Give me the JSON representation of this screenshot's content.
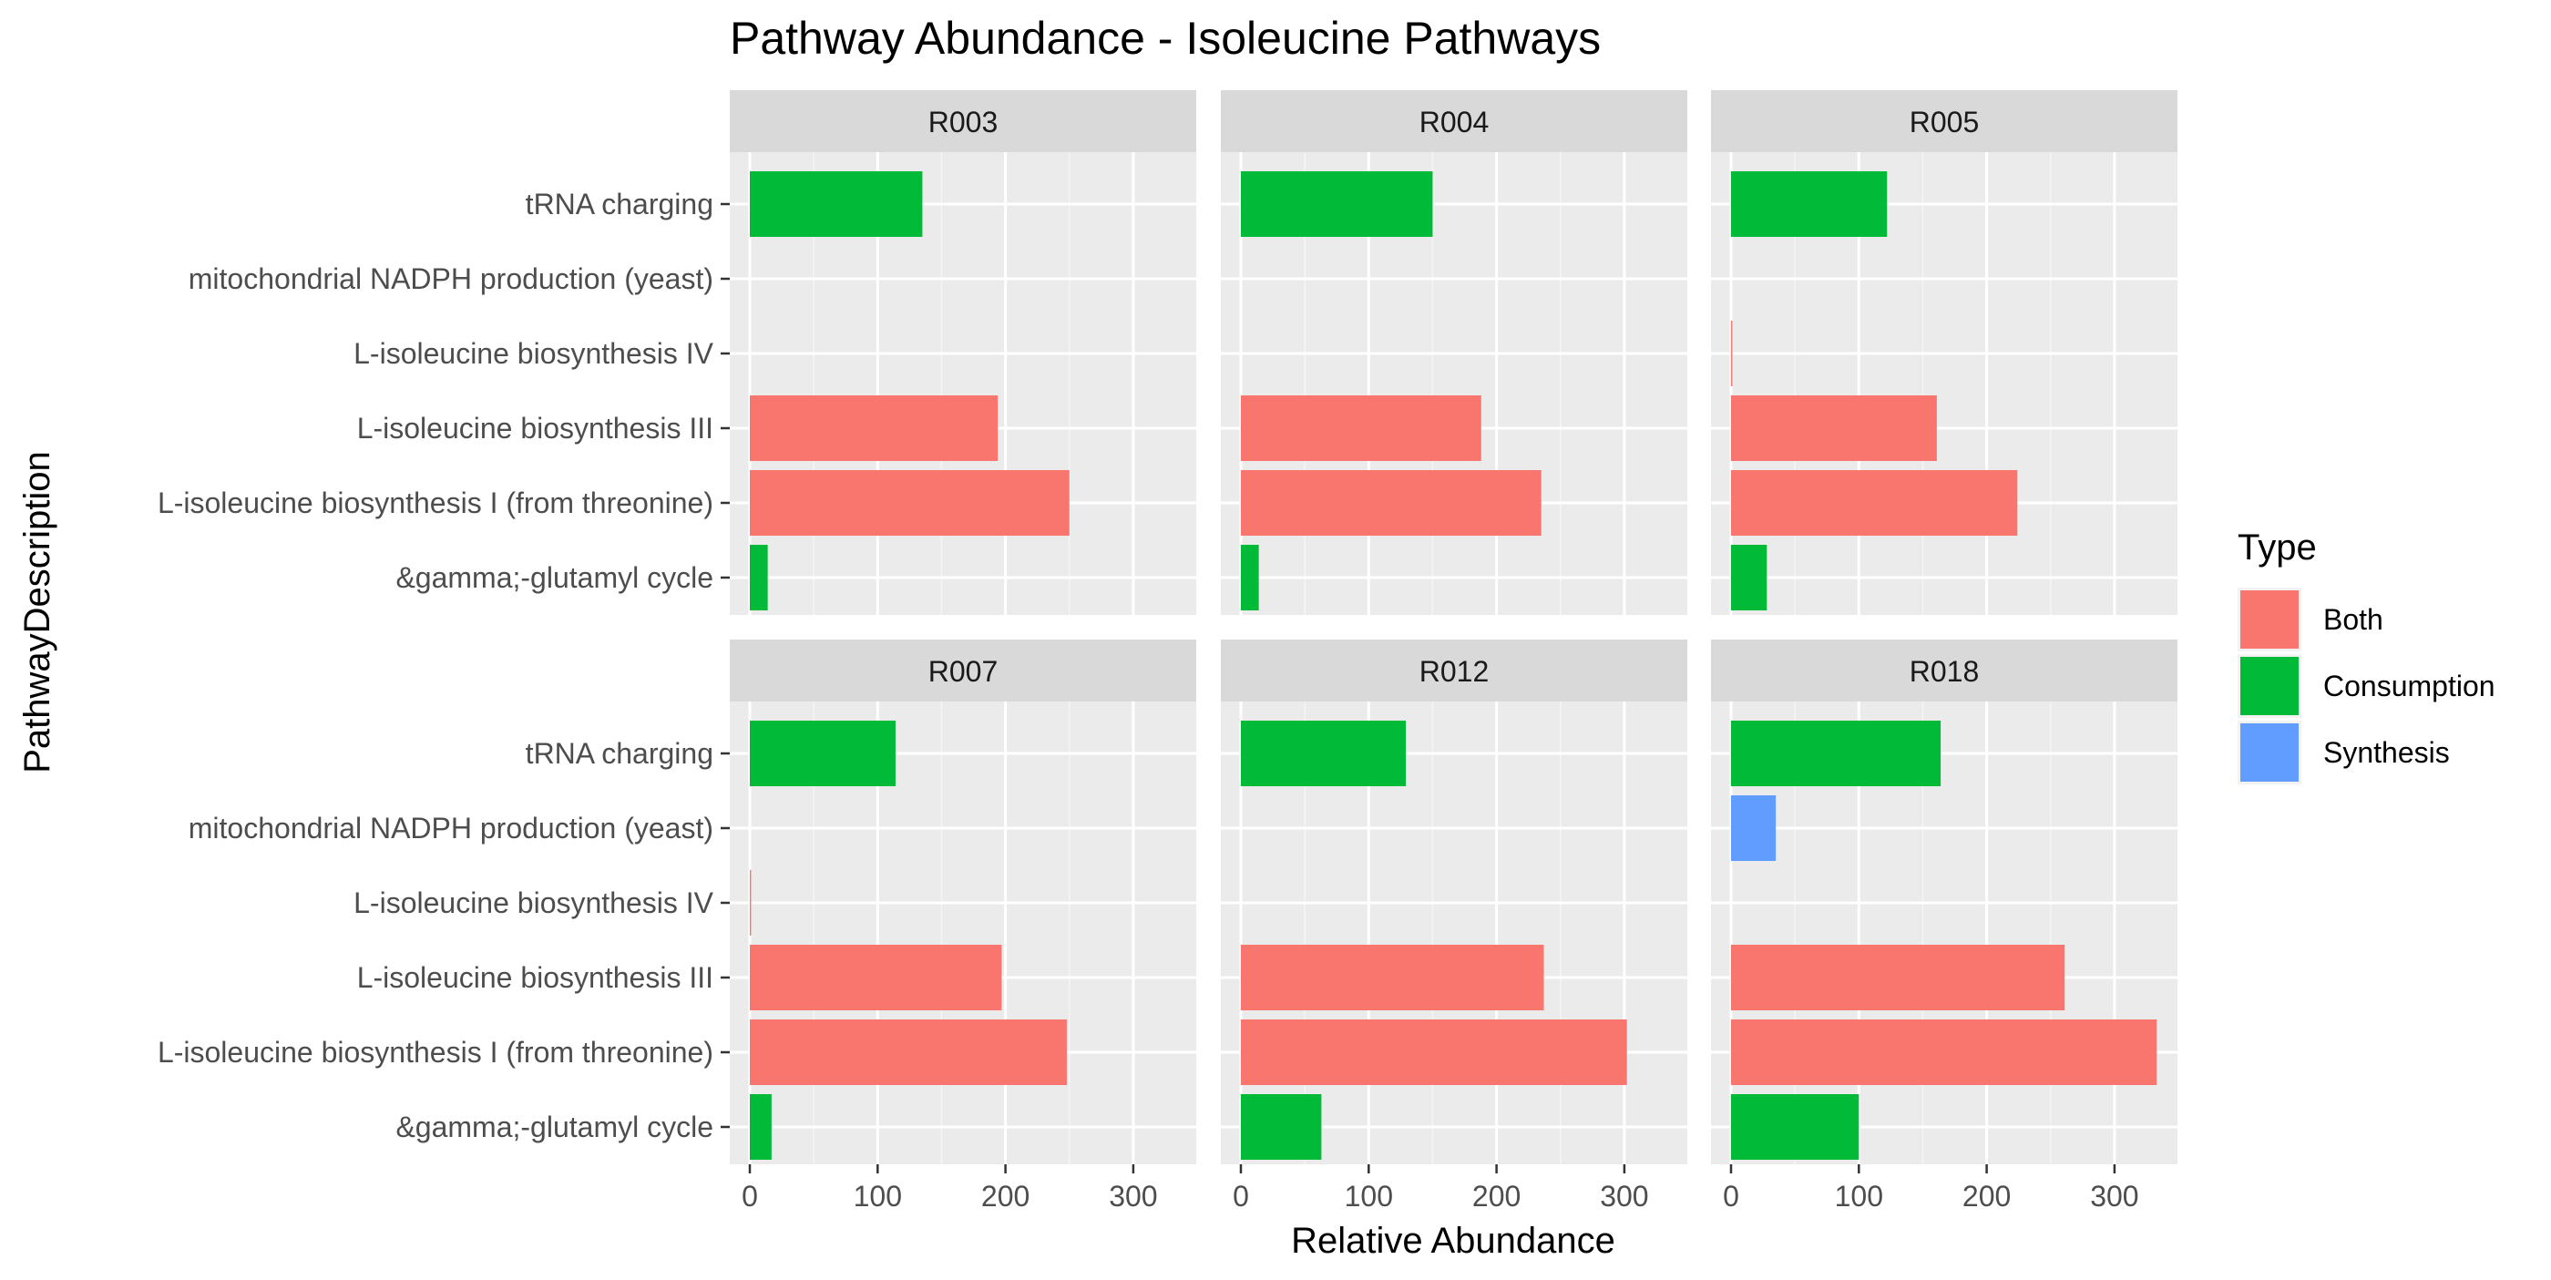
{
  "chart_data": {
    "type": "bar",
    "orientation": "horizontal",
    "title": "Pathway Abundance - Isoleucine Pathways",
    "xlabel": "Relative Abundance",
    "ylabel": "PathwayDescription",
    "xlim": [
      0,
      350
    ],
    "x_ticks": [
      0,
      100,
      200,
      300
    ],
    "x_tick_labels": [
      "0",
      "100",
      "200",
      "300"
    ],
    "grid": true,
    "categories": [
      "&gamma;-glutamyl cycle",
      "L-isoleucine biosynthesis I (from threonine)",
      "L-isoleucine biosynthesis III",
      "L-isoleucine biosynthesis IV",
      "mitochondrial NADPH production (yeast)",
      "tRNA charging"
    ],
    "category_types": [
      "Consumption",
      "Both",
      "Both",
      "Both",
      "Synthesis",
      "Consumption"
    ],
    "legend": {
      "title": "Type",
      "position": "right",
      "entries": [
        {
          "label": "Both",
          "color": "#F8766D"
        },
        {
          "label": "Consumption",
          "color": "#00BA38"
        },
        {
          "label": "Synthesis",
          "color": "#619CFF"
        }
      ]
    },
    "facets": [
      {
        "label": "R003",
        "values": [
          14,
          250,
          194,
          0,
          0,
          135
        ]
      },
      {
        "label": "R004",
        "values": [
          14,
          235,
          188,
          0,
          0,
          150
        ]
      },
      {
        "label": "R005",
        "values": [
          28,
          224,
          161,
          1,
          0,
          122
        ]
      },
      {
        "label": "R007",
        "values": [
          17,
          248,
          197,
          1,
          0,
          114
        ]
      },
      {
        "label": "R012",
        "values": [
          63,
          302,
          237,
          0,
          0,
          129
        ]
      },
      {
        "label": "R018",
        "values": [
          100,
          333,
          261,
          0,
          35,
          164
        ]
      }
    ]
  }
}
